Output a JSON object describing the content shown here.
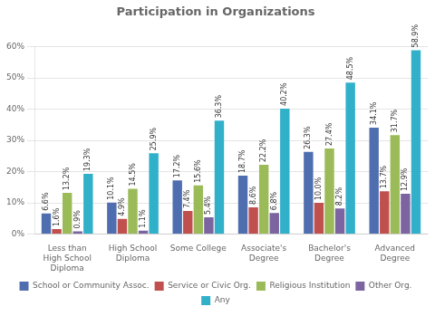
{
  "chart_data": {
    "type": "bar",
    "title": "Participation in Organizations",
    "categories": [
      "Less than High School\nDiploma",
      "High School Diploma",
      "Some College",
      "Associate's Degree",
      "Bachelor's Degree",
      "Advanced Degree"
    ],
    "series": [
      {
        "name": "School or Community Assoc.",
        "color": "#4F6EAF",
        "values": [
          6.6,
          10.1,
          17.2,
          18.7,
          26.3,
          34.1
        ],
        "value_labels": [
          "6.6%",
          "10.1%",
          "17.2%",
          "18.7%",
          "26.3%",
          "34.1%"
        ]
      },
      {
        "name": "Service or Civic Org.",
        "color": "#C0504D",
        "values": [
          1.6,
          4.9,
          7.4,
          8.6,
          10.0,
          13.7
        ],
        "value_labels": [
          "1.6%",
          "4.9%",
          "7.4%",
          "8.6%",
          "10.0%",
          "13.7%"
        ]
      },
      {
        "name": "Religious Institution",
        "color": "#9BBB59",
        "values": [
          13.2,
          14.5,
          15.6,
          22.2,
          27.4,
          31.7
        ],
        "value_labels": [
          "13.2%",
          "14.5%",
          "15.6%",
          "22.2%",
          "27.4%",
          "31.7%"
        ]
      },
      {
        "name": "Other Org.",
        "color": "#7B64A0",
        "values": [
          0.9,
          1.1,
          5.4,
          6.8,
          8.2,
          12.9
        ],
        "value_labels": [
          "0.9%",
          "1.1%",
          "5.4%",
          "6.8%",
          "8.2%",
          "12.9%"
        ]
      },
      {
        "name": "Any",
        "color": "#31B0C9",
        "values": [
          19.3,
          25.9,
          36.3,
          40.2,
          48.5,
          58.9
        ],
        "value_labels": [
          "19.3%",
          "25.9%",
          "36.3%",
          "40.2%",
          "48.5%",
          "58.9%"
        ]
      }
    ],
    "ylim": [
      0,
      60
    ],
    "yticks": [
      {
        "value": 0,
        "label": "0%"
      },
      {
        "value": 10,
        "label": "10%"
      },
      {
        "value": 20,
        "label": "20%"
      },
      {
        "value": 30,
        "label": "30%"
      },
      {
        "value": 40,
        "label": "40%"
      },
      {
        "value": 50,
        "label": "50%"
      },
      {
        "value": 60,
        "label": "60%"
      }
    ],
    "grid": true,
    "legend": "bottom",
    "data_labels": true
  }
}
